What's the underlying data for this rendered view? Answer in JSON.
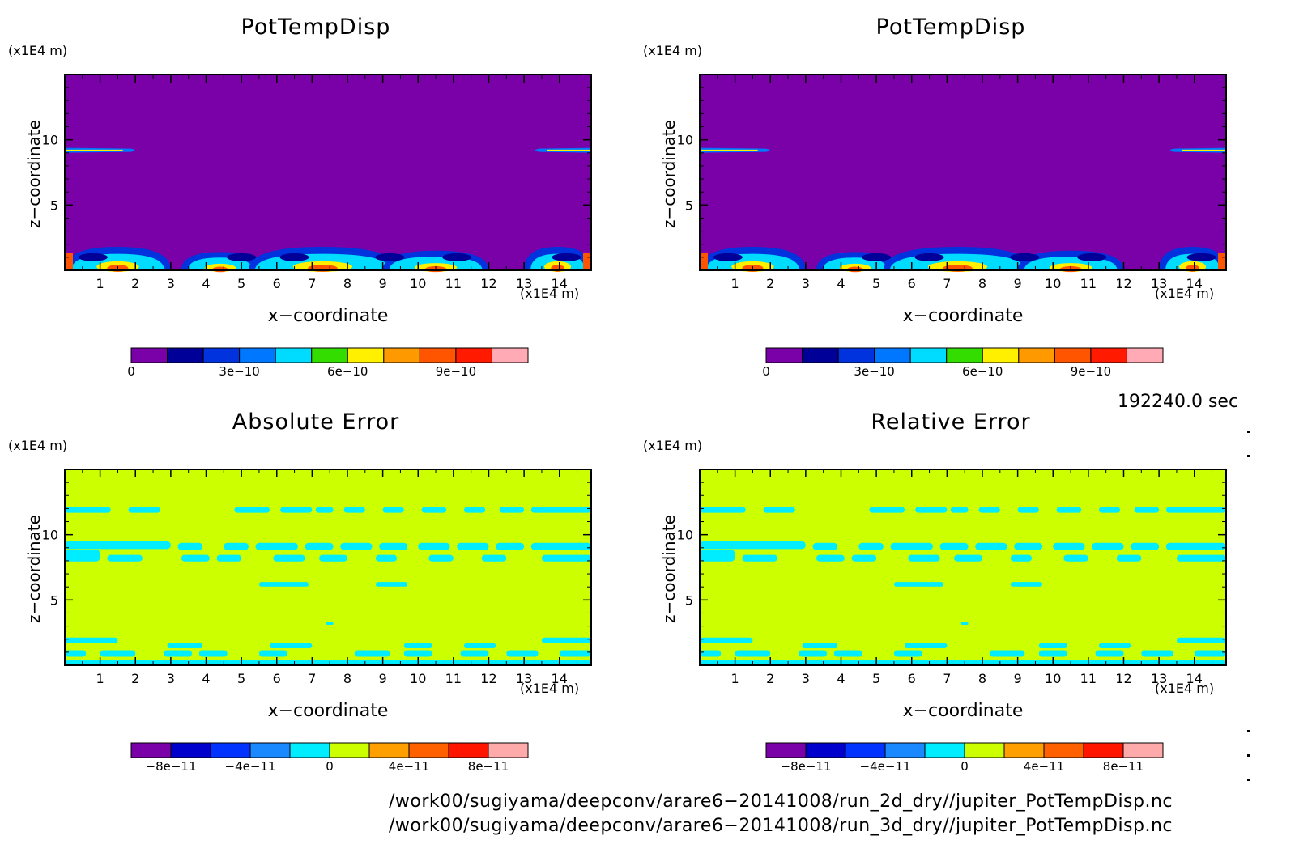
{
  "panels": [
    {
      "title": "PotTempDisp",
      "z_unit": "(x1E4 m)",
      "x_unit": "(x1E4 m)",
      "xlabel": "x−coordinate",
      "ylabel": "z−coordinate",
      "colorbar_labels": [
        "0",
        "3e−10",
        "6e−10",
        "9e−10"
      ]
    },
    {
      "title": "PotTempDisp",
      "z_unit": "(x1E4 m)",
      "x_unit": "(x1E4 m)",
      "xlabel": "x−coordinate",
      "ylabel": "z−coordinate",
      "colorbar_labels": [
        "0",
        "3e−10",
        "6e−10",
        "9e−10"
      ]
    },
    {
      "title": "Absolute Error",
      "z_unit": "(x1E4 m)",
      "x_unit": "(x1E4 m)",
      "xlabel": "x−coordinate",
      "ylabel": "z−coordinate",
      "colorbar_labels": [
        "−8e−11",
        "−4e−11",
        "0",
        "4e−11",
        "8e−11"
      ]
    },
    {
      "title": "Relative Error",
      "z_unit": "(x1E4 m)",
      "x_unit": "(x1E4 m)",
      "xlabel": "x−coordinate",
      "ylabel": "z−coordinate",
      "colorbar_labels": [
        "−8e−11",
        "−4e−11",
        "0",
        "4e−11",
        "8e−11"
      ]
    }
  ],
  "time_label": "192240.0 sec",
  "file_paths": [
    "/work00/sugiyama/deepconv/arare6−20141008/run_2d_dry//jupiter_PotTempDisp.nc",
    "/work00/sugiyama/deepconv/arare6−20141008/run_3d_dry//jupiter_PotTempDisp.nc"
  ],
  "chart_data": [
    {
      "type": "heatmap",
      "title": "PotTempDisp",
      "xlabel": "x−coordinate",
      "ylabel": "z−coordinate",
      "xlim": [
        0,
        14.9
      ],
      "ylim": [
        0,
        15
      ],
      "x_ticks": [
        1,
        2,
        3,
        4,
        5,
        6,
        7,
        8,
        9,
        10,
        11,
        12,
        13,
        14
      ],
      "y_ticks": [
        5,
        10
      ],
      "colorbar": {
        "levels": [
          0,
          1e-10,
          2e-10,
          3e-10,
          4e-10,
          5e-10,
          6e-10,
          7e-10,
          8e-10,
          9e-10,
          1e-09,
          1.1e-09
        ],
        "colors": [
          "#7a00a8",
          "#000099",
          "#0033dd",
          "#0077ff",
          "#00dcff",
          "#33dd00",
          "#fff000",
          "#ff9900",
          "#ff5500",
          "#ff1a00",
          "#ffaab4"
        ],
        "tick_values": [
          0,
          3e-10,
          6e-10,
          9e-10
        ]
      },
      "background_level": 0,
      "features": [
        {
          "desc": "thin thermal layer near z=9.2 at left edge",
          "x": [
            0,
            2.1
          ],
          "z": 9.2
        },
        {
          "desc": "thin thermal layer near z=9.2 at right edge",
          "x": [
            13.2,
            14.9
          ],
          "z": 9.2
        },
        {
          "desc": "convective cells near surface",
          "x_centers": [
            0.8,
            4.2,
            6.5,
            8.2,
            10.5,
            14.2
          ],
          "z_top": 1.8
        }
      ]
    },
    {
      "type": "heatmap",
      "title": "PotTempDisp",
      "xlabel": "x−coordinate",
      "ylabel": "z−coordinate",
      "xlim": [
        0,
        14.9
      ],
      "ylim": [
        0,
        15
      ],
      "x_ticks": [
        1,
        2,
        3,
        4,
        5,
        6,
        7,
        8,
        9,
        10,
        11,
        12,
        13,
        14
      ],
      "y_ticks": [
        5,
        10
      ],
      "colorbar": {
        "levels": [
          0,
          1e-10,
          2e-10,
          3e-10,
          4e-10,
          5e-10,
          6e-10,
          7e-10,
          8e-10,
          9e-10,
          1e-09,
          1.1e-09
        ],
        "colors": [
          "#7a00a8",
          "#000099",
          "#0033dd",
          "#0077ff",
          "#00dcff",
          "#33dd00",
          "#fff000",
          "#ff9900",
          "#ff5500",
          "#ff1a00",
          "#ffaab4"
        ],
        "tick_values": [
          0,
          3e-10,
          6e-10,
          9e-10
        ]
      },
      "background_level": 0
    },
    {
      "type": "heatmap",
      "title": "Absolute Error",
      "xlabel": "x−coordinate",
      "ylabel": "z−coordinate",
      "xlim": [
        0,
        14.9
      ],
      "ylim": [
        0,
        15
      ],
      "x_ticks": [
        1,
        2,
        3,
        4,
        5,
        6,
        7,
        8,
        9,
        10,
        11,
        12,
        13,
        14
      ],
      "y_ticks": [
        5,
        10
      ],
      "colorbar": {
        "levels": [
          -1e-10,
          -8e-11,
          -6e-11,
          -4e-11,
          -2e-11,
          0,
          2e-11,
          4e-11,
          6e-11,
          8e-11,
          1e-10
        ],
        "colors": [
          "#7a00a8",
          "#0000cc",
          "#0033ff",
          "#1a88ff",
          "#00ecff",
          "#ccff00",
          "#ffa000",
          "#ff6000",
          "#ff1500",
          "#ffaaaa"
        ],
        "tick_values": [
          -8e-11,
          -4e-11,
          0,
          4e-11,
          8e-11
        ]
      },
      "background_level": "0 to 2e−11",
      "negative_bands_z": [
        12,
        9,
        8.5,
        6,
        2,
        1
      ]
    },
    {
      "type": "heatmap",
      "title": "Relative Error",
      "xlabel": "x−coordinate",
      "ylabel": "z−coordinate",
      "xlim": [
        0,
        14.9
      ],
      "ylim": [
        0,
        15
      ],
      "x_ticks": [
        1,
        2,
        3,
        4,
        5,
        6,
        7,
        8,
        9,
        10,
        11,
        12,
        13,
        14
      ],
      "y_ticks": [
        5,
        10
      ],
      "colorbar": {
        "levels": [
          -1e-10,
          -8e-11,
          -6e-11,
          -4e-11,
          -2e-11,
          0,
          2e-11,
          4e-11,
          6e-11,
          8e-11,
          1e-10
        ],
        "colors": [
          "#7a00a8",
          "#0000cc",
          "#0033ff",
          "#1a88ff",
          "#00ecff",
          "#ccff00",
          "#ffa000",
          "#ff6000",
          "#ff1500",
          "#ffaaaa"
        ],
        "tick_values": [
          -8e-11,
          -4e-11,
          0,
          4e-11,
          8e-11
        ]
      },
      "background_level": "0 to 2e−11",
      "negative_bands_z": [
        12,
        9,
        8.5,
        6,
        2,
        1
      ]
    }
  ]
}
